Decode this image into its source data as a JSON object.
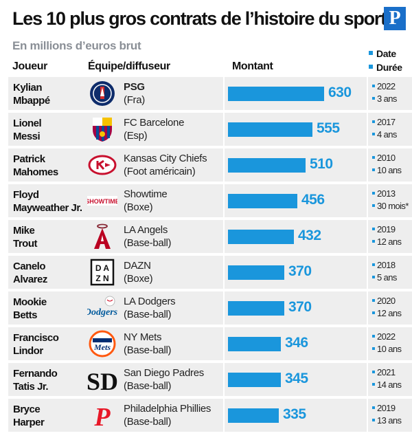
{
  "header": {
    "title": "Les 10 plus gros contrats de l’histoire du sport",
    "subtitle": "En millions d’euros brut",
    "logo_letter": "P",
    "col_player": "Joueur",
    "col_team": "Équipe/diffuseur",
    "col_amount": "Montant",
    "legend_date": "Date",
    "legend_duration": "Durée"
  },
  "colors": {
    "accent": "#1a96dc",
    "row_bg": "#eeeeee",
    "logo_bg": "#1a6fc9"
  },
  "chart_data": {
    "type": "bar",
    "title": "Les 10 plus gros contrats de l’histoire du sport",
    "subtitle": "En millions d’euros brut",
    "orientation": "horizontal",
    "categories": [
      "Kylian Mbappé",
      "Lionel Messi",
      "Patrick Mahomes",
      "Floyd Mayweather Jr.",
      "Mike Trout",
      "Canelo Alvarez",
      "Mookie Betts",
      "Francisco Lindor",
      "Fernando Tatis Jr.",
      "Bryce Harper"
    ],
    "values": [
      630,
      555,
      510,
      456,
      432,
      370,
      370,
      346,
      345,
      335
    ],
    "xlim": [
      0,
      700
    ],
    "rows": [
      {
        "player_1": "Kylian",
        "player_2": "Mbappé",
        "team": "PSG",
        "team_bold": true,
        "team_sub": "(Fra)",
        "value": 630,
        "date": "2022",
        "duration": "3 ans",
        "logo": "psg-logo"
      },
      {
        "player_1": "Lionel",
        "player_2": "Messi",
        "team": "FC Barcelone",
        "team_bold": false,
        "team_sub": "(Esp)",
        "value": 555,
        "date": "2017",
        "duration": "4 ans",
        "logo": "barcelona-logo"
      },
      {
        "player_1": "Patrick",
        "player_2": "Mahomes",
        "team": "Kansas City Chiefs",
        "team_bold": false,
        "team_sub": "(Foot américain)",
        "value": 510,
        "date": "2010",
        "duration": "10 ans",
        "logo": "chiefs-logo"
      },
      {
        "player_1": "Floyd",
        "player_2": "Mayweather Jr.",
        "team": "Showtime",
        "team_bold": false,
        "team_sub": "(Boxe)",
        "value": 456,
        "date": "2013",
        "duration": "30 mois*",
        "logo": "showtime-logo"
      },
      {
        "player_1": "Mike",
        "player_2": "Trout",
        "team": "LA Angels",
        "team_bold": false,
        "team_sub": "(Base-ball)",
        "value": 432,
        "date": "2019",
        "duration": "12 ans",
        "logo": "angels-logo"
      },
      {
        "player_1": "Canelo",
        "player_2": "Alvarez",
        "team": "DAZN",
        "team_bold": false,
        "team_sub": "(Boxe)",
        "value": 370,
        "date": "2018",
        "duration": "5 ans",
        "logo": "dazn-logo"
      },
      {
        "player_1": "Mookie",
        "player_2": "Betts",
        "team": "LA Dodgers",
        "team_bold": false,
        "team_sub": "(Base-ball)",
        "value": 370,
        "date": "2020",
        "duration": "12 ans",
        "logo": "dodgers-logo"
      },
      {
        "player_1": "Francisco",
        "player_2": "Lindor",
        "team": "NY Mets",
        "team_bold": false,
        "team_sub": "(Base-ball)",
        "value": 346,
        "date": "2022",
        "duration": "10 ans",
        "logo": "mets-logo"
      },
      {
        "player_1": "Fernando",
        "player_2": "Tatis Jr.",
        "team": "San Diego Padres",
        "team_bold": false,
        "team_sub": "(Base-ball)",
        "value": 345,
        "date": "2021",
        "duration": "14 ans",
        "logo": "padres-logo"
      },
      {
        "player_1": "Bryce",
        "player_2": "Harper",
        "team": "Philadelphia Phillies",
        "team_bold": false,
        "team_sub": "(Base-ball)",
        "value": 335,
        "date": "2019",
        "duration": "13 ans",
        "logo": "phillies-logo"
      }
    ]
  }
}
